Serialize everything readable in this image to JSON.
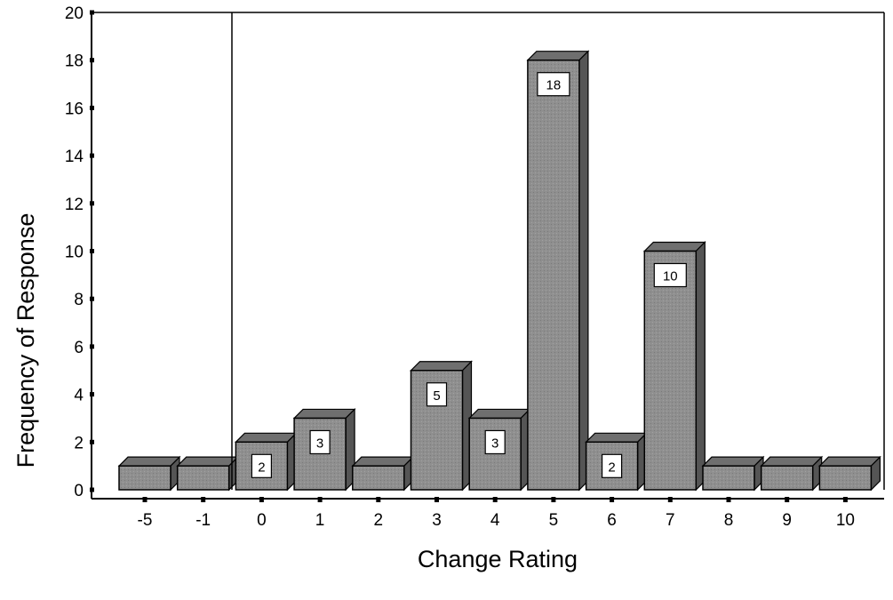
{
  "chart_data": {
    "type": "bar",
    "title": "",
    "xlabel": "Change Rating",
    "ylabel": "Frequency of Response",
    "categories": [
      "-5",
      "-1",
      "0",
      "1",
      "2",
      "3",
      "4",
      "5",
      "6",
      "7",
      "8",
      "9",
      "10"
    ],
    "values": [
      1,
      1,
      2,
      3,
      1,
      5,
      3,
      18,
      2,
      10,
      1,
      1,
      1
    ],
    "data_labels": [
      "",
      "",
      "2",
      "3",
      "",
      "5",
      "3",
      "18",
      "2",
      "10",
      "",
      "",
      ""
    ],
    "ylim": [
      0,
      20
    ],
    "yticks": [
      "0",
      "2",
      "4",
      "6",
      "8",
      "10",
      "12",
      "14",
      "16",
      "18",
      "20"
    ],
    "grid": false,
    "legend": "none",
    "reference_line_after_category": "-1",
    "colors": {
      "bar_front": "#8c8c8c",
      "bar_top": "#6f6f6f",
      "bar_side": "#555555",
      "outline": "#000000"
    }
  }
}
